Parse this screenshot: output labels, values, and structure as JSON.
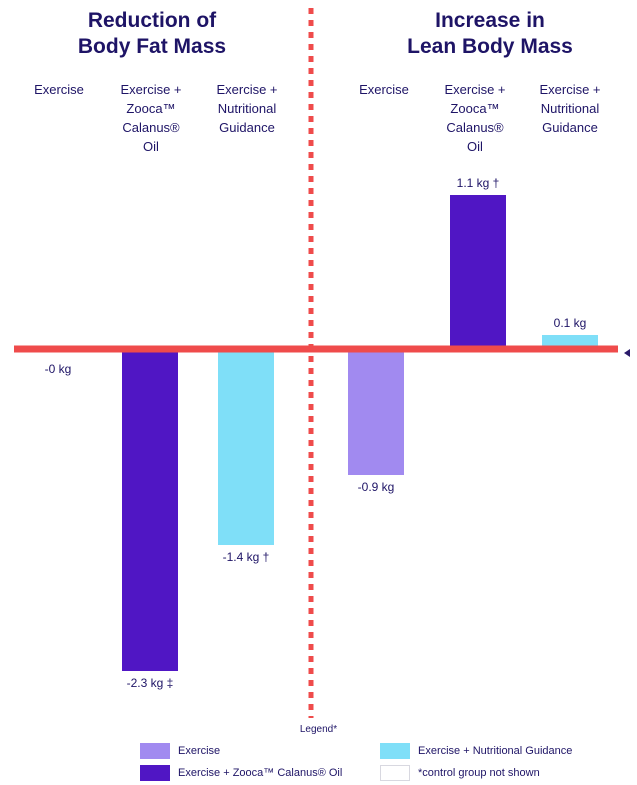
{
  "panels": [
    {
      "title_lines": [
        "Reduction of",
        "Body Fat Mass"
      ]
    },
    {
      "title_lines": [
        "Increase in",
        "Lean Body Mass"
      ]
    }
  ],
  "category_labels": [
    [
      "Exercise"
    ],
    [
      "Exercise +",
      "Zooca™",
      "Calanus®",
      "Oil"
    ],
    [
      "Exercise +",
      "Nutritional",
      "Guidance"
    ]
  ],
  "legend": {
    "title": "Legend*",
    "items": [
      {
        "label": "Exercise",
        "color": "#a18af0"
      },
      {
        "label": "Exercise + Nutritional Guidance",
        "color": "#7fdff8"
      },
      {
        "label": "Exercise + Zooca™ Calanus® Oil",
        "color": "#5016c4"
      },
      {
        "label": "*control group not shown",
        "color": "#ffffff"
      }
    ]
  },
  "colors": {
    "baseline": "#ef4b4b",
    "divider": "#ef4b4b",
    "exercise": "#a18af0",
    "zooca": "#5016c4",
    "nutrition": "#7fdff8"
  },
  "chart_data": [
    {
      "type": "bar",
      "title": "Reduction of Body Fat Mass",
      "categories": [
        "Exercise",
        "Exercise + Zooca™ Calanus® Oil",
        "Exercise + Nutritional Guidance"
      ],
      "values": [
        0,
        -2.3,
        -1.4
      ],
      "data_labels": [
        "-0 kg",
        "-2.3 kg ‡",
        "-1.4 kg †"
      ],
      "colors": [
        "#a18af0",
        "#5016c4",
        "#7fdff8"
      ],
      "ylim": [
        -2.5,
        1.3
      ]
    },
    {
      "type": "bar",
      "title": "Increase in Lean Body Mass",
      "categories": [
        "Exercise",
        "Exercise + Zooca™ Calanus® Oil",
        "Exercise + Nutritional Guidance"
      ],
      "values": [
        -0.9,
        1.1,
        0.1
      ],
      "data_labels": [
        "-0.9 kg",
        "1.1 kg †",
        "0.1 kg"
      ],
      "colors": [
        "#a18af0",
        "#5016c4",
        "#7fdff8"
      ],
      "ylim": [
        -2.5,
        1.3
      ]
    }
  ]
}
